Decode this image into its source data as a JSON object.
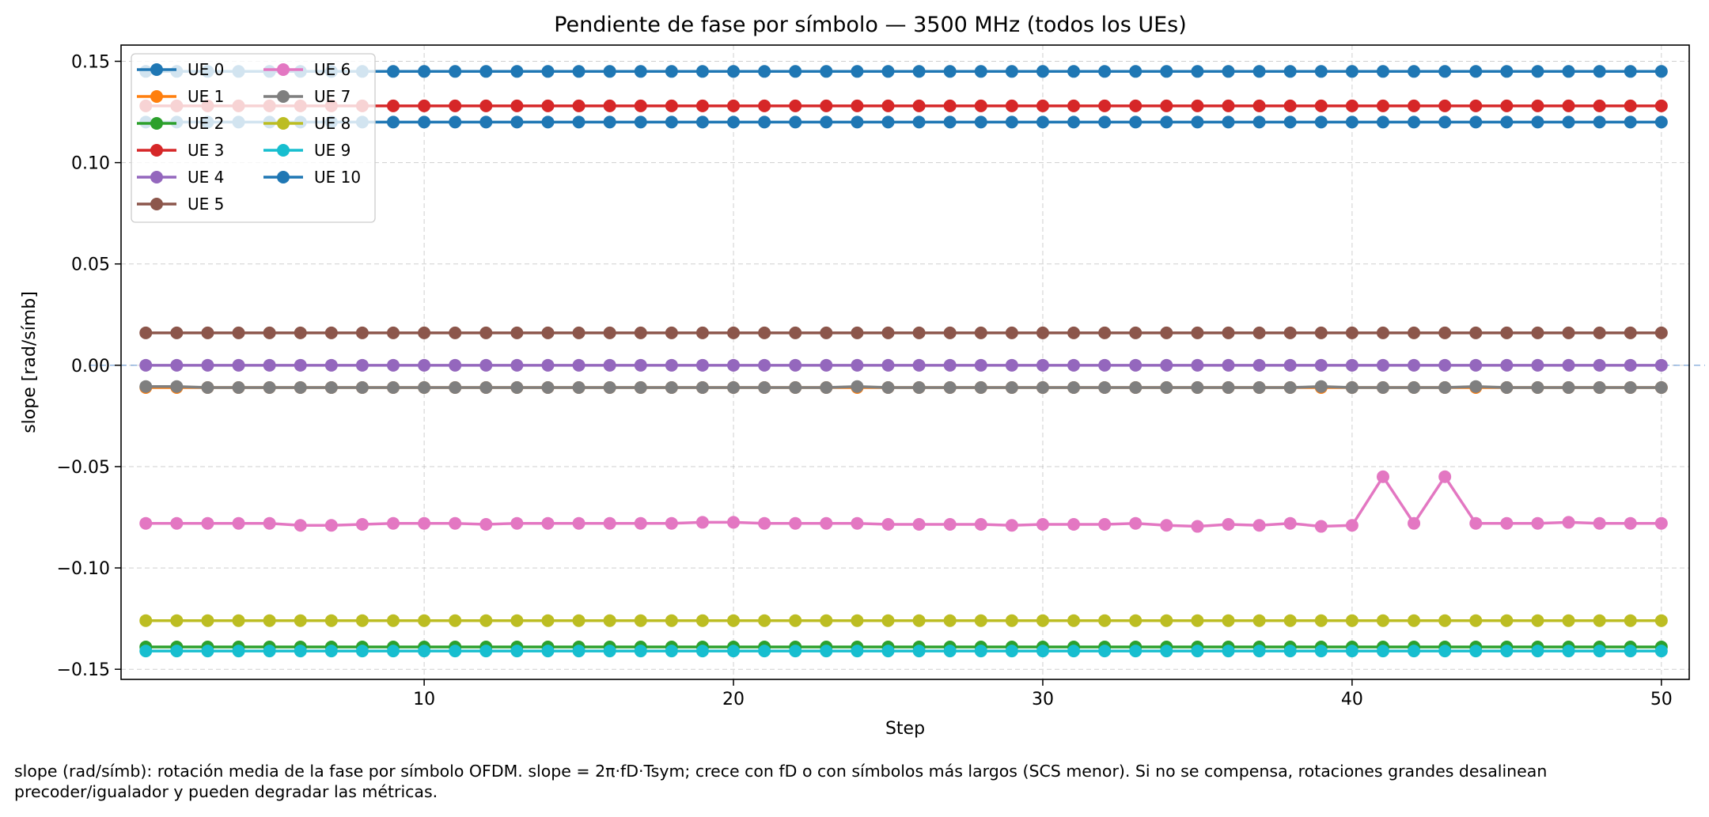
{
  "chart_data": {
    "type": "line",
    "title": "Pendiente de fase por símbolo — 3500 MHz (todos los UEs)",
    "xlabel": "Step",
    "ylabel": "slope [rad/símb]",
    "xlim": [
      0.2,
      50.9
    ],
    "ylim": [
      -0.155,
      0.158
    ],
    "xticks": [
      10,
      20,
      30,
      40,
      50
    ],
    "yticks": [
      -0.15,
      -0.1,
      -0.05,
      0.0,
      0.05,
      0.1,
      0.15
    ],
    "ytick_labels": [
      "−0.15",
      "−0.10",
      "−0.05",
      "0.00",
      "0.05",
      "0.10",
      "0.15"
    ],
    "grid": true,
    "legend_position": "top-left",
    "legend_columns": 2,
    "reference_line": {
      "y": 0,
      "style": "dashed",
      "color": "#5b8fd0"
    },
    "x": [
      1,
      2,
      3,
      4,
      5,
      6,
      7,
      8,
      9,
      10,
      11,
      12,
      13,
      14,
      15,
      16,
      17,
      18,
      19,
      20,
      21,
      22,
      23,
      24,
      25,
      26,
      27,
      28,
      29,
      30,
      31,
      32,
      33,
      34,
      35,
      36,
      37,
      38,
      39,
      40,
      41,
      42,
      43,
      44,
      45,
      46,
      47,
      48,
      49,
      50
    ],
    "series": [
      {
        "name": "UE 0",
        "color": "#1f77b4",
        "constant": 0.145
      },
      {
        "name": "UE 1",
        "color": "#ff7f0e",
        "constant": -0.011
      },
      {
        "name": "UE 2",
        "color": "#2ca02c",
        "constant": -0.139
      },
      {
        "name": "UE 3",
        "color": "#d62728",
        "constant": 0.128
      },
      {
        "name": "UE 4",
        "color": "#9467bd",
        "constant": 0.0
      },
      {
        "name": "UE 5",
        "color": "#8c564b",
        "constant": 0.016
      },
      {
        "name": "UE 6",
        "color": "#e377c2",
        "values": [
          -0.078,
          -0.078,
          -0.078,
          -0.078,
          -0.078,
          -0.079,
          -0.079,
          -0.0785,
          -0.078,
          -0.078,
          -0.078,
          -0.0785,
          -0.078,
          -0.078,
          -0.078,
          -0.078,
          -0.078,
          -0.078,
          -0.0775,
          -0.0775,
          -0.078,
          -0.078,
          -0.078,
          -0.078,
          -0.0785,
          -0.0785,
          -0.0785,
          -0.0785,
          -0.079,
          -0.0785,
          -0.0785,
          -0.0785,
          -0.078,
          -0.079,
          -0.0795,
          -0.0785,
          -0.079,
          -0.078,
          -0.0795,
          -0.079,
          -0.055,
          -0.078,
          -0.055,
          -0.078,
          -0.078,
          -0.078,
          -0.0775,
          -0.078,
          -0.078,
          -0.078
        ]
      },
      {
        "name": "UE 7",
        "color": "#7f7f7f",
        "values": [
          -0.0105,
          -0.0105,
          -0.011,
          -0.011,
          -0.011,
          -0.011,
          -0.011,
          -0.011,
          -0.011,
          -0.011,
          -0.011,
          -0.011,
          -0.011,
          -0.011,
          -0.011,
          -0.011,
          -0.011,
          -0.011,
          -0.011,
          -0.011,
          -0.011,
          -0.011,
          -0.011,
          -0.0105,
          -0.011,
          -0.011,
          -0.011,
          -0.011,
          -0.011,
          -0.011,
          -0.011,
          -0.011,
          -0.011,
          -0.011,
          -0.011,
          -0.011,
          -0.011,
          -0.011,
          -0.0105,
          -0.011,
          -0.011,
          -0.011,
          -0.011,
          -0.0105,
          -0.011,
          -0.011,
          -0.011,
          -0.011,
          -0.011,
          -0.011
        ]
      },
      {
        "name": "UE 8",
        "color": "#bcbd22",
        "constant": -0.126
      },
      {
        "name": "UE 9",
        "color": "#17becf",
        "constant": -0.141
      },
      {
        "name": "UE 10",
        "color": "#1f77b4",
        "constant": 0.12
      }
    ]
  },
  "caption": {
    "line1": "slope (rad/símb): rotación media de la fase por símbolo OFDM. slope = 2π·fD·Tsym; crece con fD o con símbolos más largos (SCS menor). Si no se compensa, rotaciones grandes desalinean",
    "line2": "precoder/igualador y pueden degradar las métricas."
  }
}
